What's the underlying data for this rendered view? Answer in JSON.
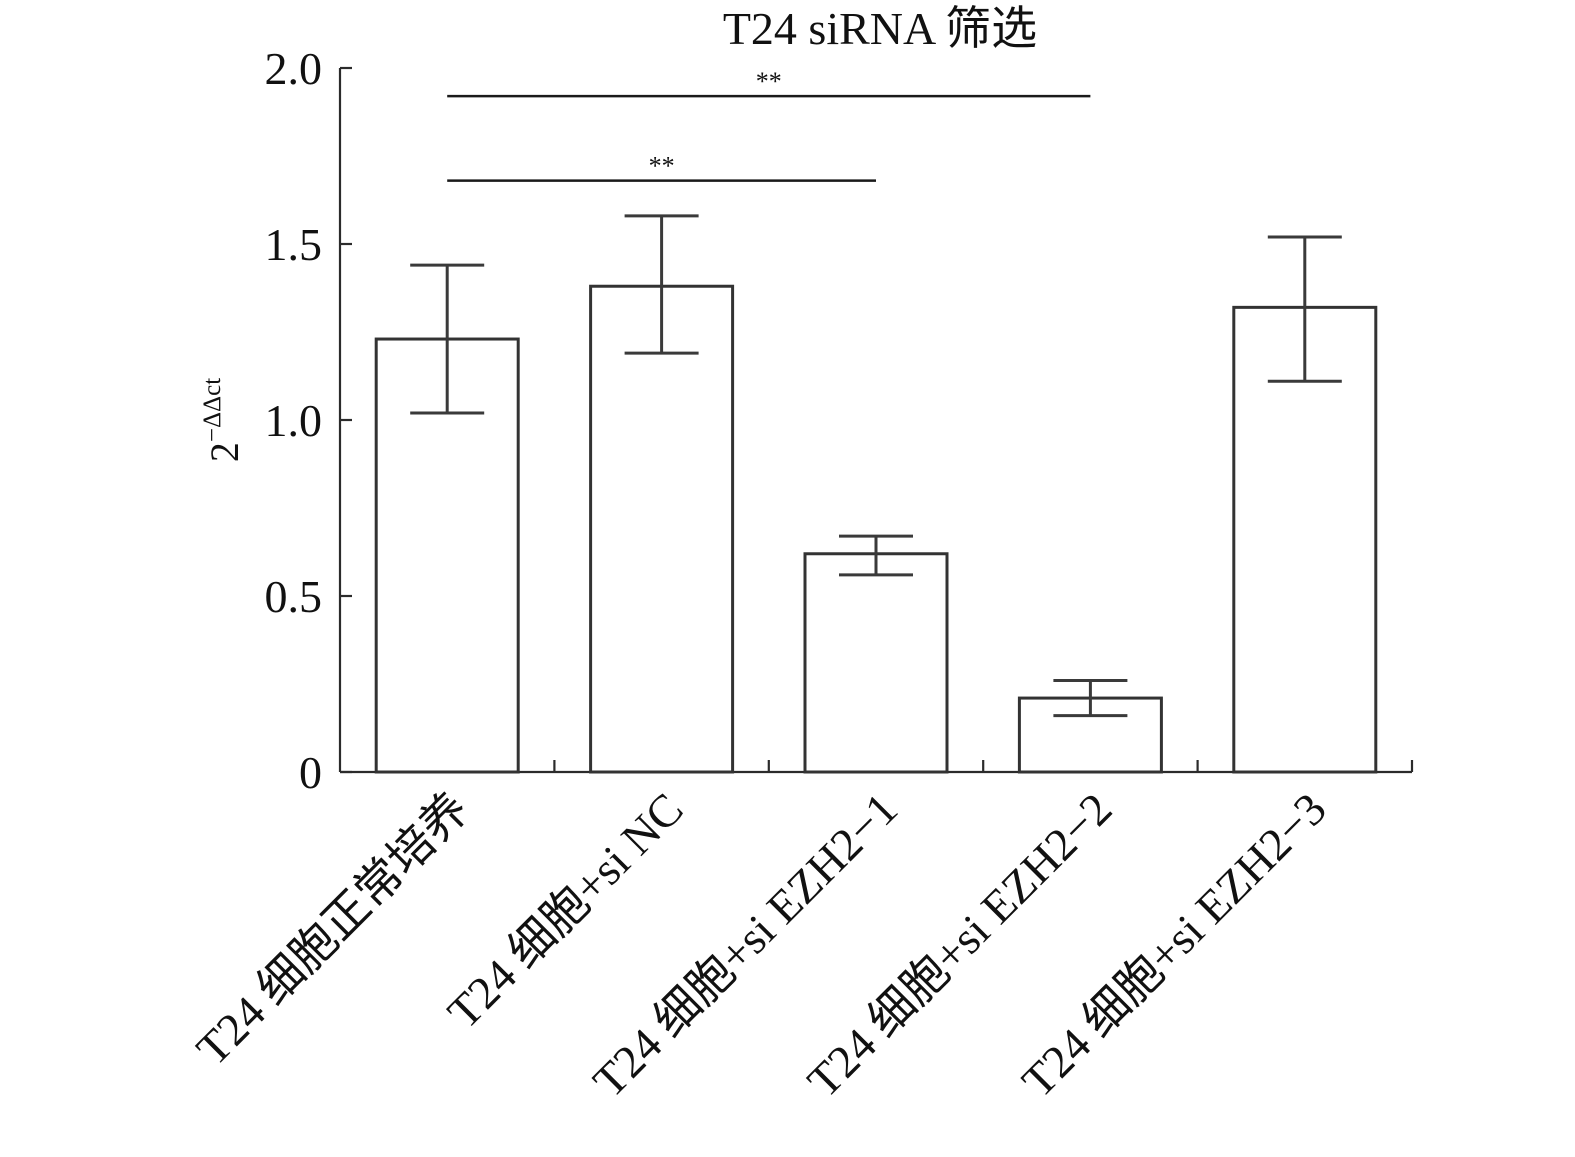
{
  "chart_data": {
    "type": "bar",
    "title": "T24 siRNA 筛选",
    "xlabel": "",
    "ylabel": {
      "base": "2",
      "exponent": "−ΔΔct"
    },
    "ylim": [
      0,
      2.0
    ],
    "yticks": [
      0,
      0.5,
      1.0,
      1.5,
      2.0
    ],
    "ytick_labels": [
      "0",
      "0.5",
      "1.0",
      "1.5",
      "2.0"
    ],
    "categories": [
      "T24 细胞正常培养",
      "T24 细胞+si NC",
      "T24 细胞+si EZH2−1",
      "T24 细胞+si EZH2−2",
      "T24 细胞+si EZH2−3"
    ],
    "values": [
      1.23,
      1.38,
      0.62,
      0.21,
      1.32
    ],
    "error_low": [
      1.02,
      1.19,
      0.56,
      0.16,
      1.11
    ],
    "error_high": [
      1.44,
      1.58,
      0.67,
      0.26,
      1.52
    ],
    "significance": [
      {
        "from": 0,
        "to": 3,
        "label": "**",
        "y": 1.92
      },
      {
        "from": 0,
        "to": 2,
        "label": "**",
        "y": 1.68
      }
    ],
    "grid": false,
    "legend": "none",
    "colors": {
      "bar_fill": "#ffffff",
      "bar_stroke": "#333333",
      "axis": "#2b2b2b",
      "text": "#111111"
    }
  }
}
